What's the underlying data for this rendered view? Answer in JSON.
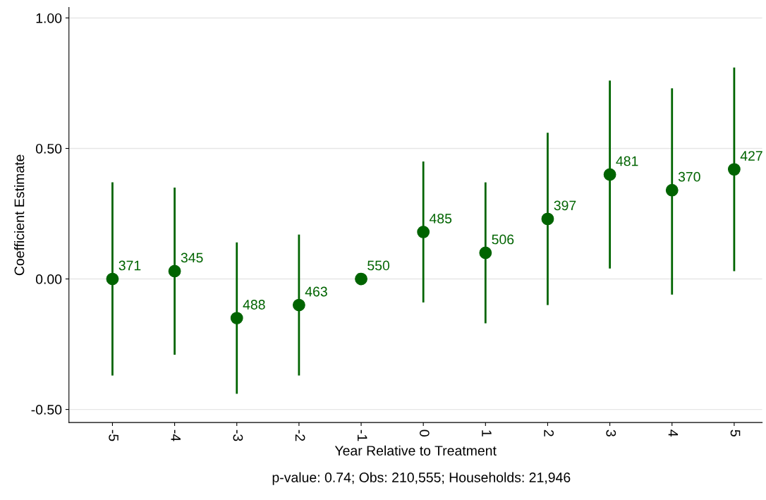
{
  "chart_data": {
    "type": "scatter",
    "xlabel": "Year Relative to Treatment",
    "ylabel": "Coefficient Estimate",
    "categories": [
      "-5",
      "-4",
      "-3",
      "-2",
      "-1",
      "0",
      "1",
      "2",
      "3",
      "4",
      "5"
    ],
    "values": [
      0.0,
      0.03,
      -0.15,
      -0.1,
      0.0,
      0.18,
      0.1,
      0.23,
      0.4,
      0.34,
      0.42
    ],
    "errors": [
      [
        -0.37,
        0.37
      ],
      [
        -0.29,
        0.35
      ],
      [
        -0.44,
        0.14
      ],
      [
        -0.37,
        0.17
      ],
      null,
      [
        -0.09,
        0.45
      ],
      [
        -0.17,
        0.37
      ],
      [
        -0.1,
        0.56
      ],
      [
        0.04,
        0.76
      ],
      [
        -0.06,
        0.73
      ],
      [
        0.03,
        0.81
      ]
    ],
    "color": "#006400",
    "marker": "circle",
    "grid": "y",
    "ylim": [
      -0.55,
      1.04
    ],
    "yticks": [
      {
        "value": -0.5,
        "label": "-0.50"
      },
      {
        "value": 0,
        "label": "0.00"
      },
      {
        "value": 0.5,
        "label": "0.50"
      },
      {
        "value": 1.0,
        "label": "1.00"
      }
    ],
    "annotations": [
      {
        "text": "371",
        "x": "-5",
        "y": 0.0
      },
      {
        "text": "345",
        "x": "-4",
        "y": 0.03
      },
      {
        "text": "488",
        "x": "-3",
        "y": -0.15
      },
      {
        "text": "463",
        "x": "-2",
        "y": -0.1
      },
      {
        "text": "550",
        "x": "-1",
        "y": 0.0
      },
      {
        "text": "485",
        "x": "0",
        "y": 0.18
      },
      {
        "text": "506",
        "x": "1",
        "y": 0.1
      },
      {
        "text": "397",
        "x": "2",
        "y": 0.23
      },
      {
        "text": "481",
        "x": "3",
        "y": 0.4
      },
      {
        "text": "370",
        "x": "4",
        "y": 0.34
      },
      {
        "text": "427",
        "x": "5",
        "y": 0.42
      },
      "p-value: 0.74; Obs: 210,555; Households: 21,946"
    ]
  }
}
